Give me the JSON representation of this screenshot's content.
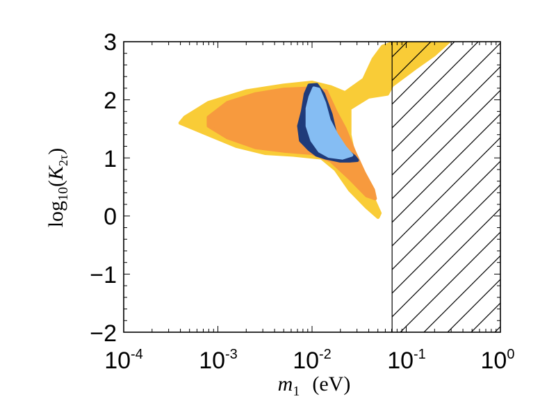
{
  "chart_data": {
    "type": "scatter",
    "title": "",
    "xscale": "log",
    "xlim_exp": [
      -4,
      0
    ],
    "ylim": [
      -2,
      3
    ],
    "x_ticks": [
      {
        "base": "10",
        "exp": "-4"
      },
      {
        "base": "10",
        "exp": "-3"
      },
      {
        "base": "10",
        "exp": "-2"
      },
      {
        "base": "10",
        "exp": "-1"
      },
      {
        "base": "10",
        "exp": "0"
      }
    ],
    "y_ticks": [
      "3",
      "2",
      "1",
      "0",
      "−1",
      "−2"
    ],
    "xlabel": {
      "symbol": "m",
      "sub": "1",
      "unit": "(eV)"
    },
    "ylabel": {
      "func": "log",
      "func_sub": "10",
      "open": "(",
      "var": "K",
      "var_sub": "2τ",
      "close": ")"
    },
    "excluded_region": {
      "x_from_log10": -1.15,
      "x_to_log10": 0,
      "pattern": "hatched"
    },
    "series": [
      {
        "name": "outer region",
        "color": "#f9cc37",
        "polygon": [
          [
            -3.35,
            1.7
          ],
          [
            -3.1,
            1.95
          ],
          [
            -2.7,
            2.15
          ],
          [
            -2.3,
            2.25
          ],
          [
            -2.0,
            2.3
          ],
          [
            -1.8,
            2.22
          ],
          [
            -1.65,
            2.12
          ],
          [
            -1.45,
            2.35
          ],
          [
            -1.35,
            2.7
          ],
          [
            -1.25,
            2.92
          ],
          [
            -1.1,
            3.0
          ],
          [
            -0.55,
            3.0
          ],
          [
            -0.7,
            2.78
          ],
          [
            -0.9,
            2.55
          ],
          [
            -1.15,
            2.25
          ],
          [
            -1.2,
            2.1
          ],
          [
            -1.4,
            2.05
          ],
          [
            -1.6,
            1.85
          ],
          [
            -1.6,
            1.4
          ],
          [
            -1.55,
            1.0
          ],
          [
            -1.45,
            0.6
          ],
          [
            -1.35,
            0.3
          ],
          [
            -1.28,
            0.05
          ],
          [
            -1.3,
            -0.02
          ],
          [
            -1.42,
            0.15
          ],
          [
            -1.6,
            0.45
          ],
          [
            -1.75,
            0.8
          ],
          [
            -1.9,
            1.0
          ],
          [
            -2.2,
            1.05
          ],
          [
            -2.5,
            1.08
          ],
          [
            -2.8,
            1.2
          ],
          [
            -3.1,
            1.4
          ],
          [
            -3.4,
            1.6
          ]
        ]
      },
      {
        "name": "middle region",
        "color": "#f79a3e",
        "polygon": [
          [
            -3.1,
            1.7
          ],
          [
            -2.9,
            1.95
          ],
          [
            -2.6,
            2.1
          ],
          [
            -2.3,
            2.18
          ],
          [
            -2.0,
            2.2
          ],
          [
            -1.85,
            2.15
          ],
          [
            -1.75,
            1.8
          ],
          [
            -1.65,
            1.5
          ],
          [
            -1.55,
            1.1
          ],
          [
            -1.45,
            0.75
          ],
          [
            -1.35,
            0.45
          ],
          [
            -1.33,
            0.3
          ],
          [
            -1.42,
            0.35
          ],
          [
            -1.6,
            0.65
          ],
          [
            -1.8,
            0.95
          ],
          [
            -2.0,
            1.08
          ],
          [
            -2.3,
            1.12
          ],
          [
            -2.6,
            1.18
          ],
          [
            -2.9,
            1.35
          ],
          [
            -3.1,
            1.55
          ]
        ]
      },
      {
        "name": "dark blue region",
        "color": "#1f3b7a",
        "polygon": [
          [
            -2.07,
            2.1
          ],
          [
            -2.03,
            2.25
          ],
          [
            -1.95,
            2.26
          ],
          [
            -1.88,
            2.1
          ],
          [
            -1.8,
            1.75
          ],
          [
            -1.75,
            1.4
          ],
          [
            -1.65,
            1.15
          ],
          [
            -1.55,
            1.02
          ],
          [
            -1.52,
            0.96
          ],
          [
            -1.6,
            0.95
          ],
          [
            -1.7,
            0.95
          ],
          [
            -1.85,
            1.0
          ],
          [
            -1.95,
            1.05
          ],
          [
            -2.03,
            1.15
          ],
          [
            -2.12,
            1.3
          ],
          [
            -2.14,
            1.55
          ],
          [
            -2.1,
            1.8
          ]
        ]
      },
      {
        "name": "light blue region",
        "color": "#85bdf3",
        "polygon": [
          [
            -2.02,
            2.05
          ],
          [
            -1.98,
            2.2
          ],
          [
            -1.93,
            2.18
          ],
          [
            -1.87,
            1.95
          ],
          [
            -1.82,
            1.65
          ],
          [
            -1.74,
            1.4
          ],
          [
            -1.65,
            1.18
          ],
          [
            -1.58,
            1.05
          ],
          [
            -1.68,
            1.0
          ],
          [
            -1.82,
            1.03
          ],
          [
            -1.92,
            1.12
          ],
          [
            -2.0,
            1.3
          ],
          [
            -2.05,
            1.55
          ],
          [
            -2.05,
            1.85
          ]
        ]
      }
    ]
  }
}
